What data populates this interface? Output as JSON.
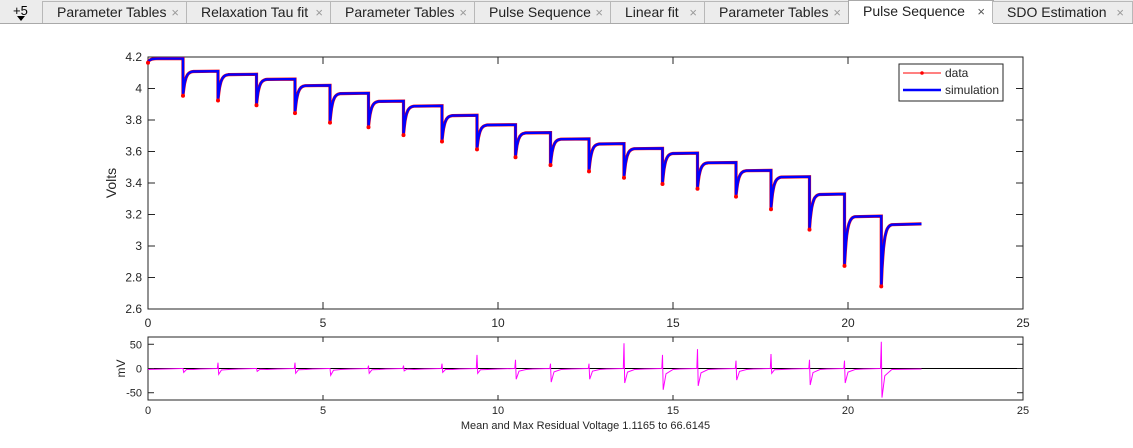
{
  "tabs": {
    "more_label": "+5",
    "items": [
      {
        "label": "Parameter Tables"
      },
      {
        "label": "Relaxation Tau fit"
      },
      {
        "label": "Parameter Tables"
      },
      {
        "label": "Pulse Sequence"
      },
      {
        "label": "Linear fit"
      },
      {
        "label": "Parameter Tables"
      },
      {
        "label": "Pulse Sequence",
        "active": true
      },
      {
        "label": "SDO Estimation"
      }
    ],
    "close_glyph": "×"
  },
  "chart_data": [
    {
      "type": "line",
      "ylabel": "Volts",
      "xlim": [
        0,
        25
      ],
      "ylim": [
        2.6,
        4.2
      ],
      "xticks": [
        "0",
        "5",
        "10",
        "15",
        "20",
        "25"
      ],
      "yticks": [
        "2.6",
        "2.8",
        "3",
        "3.2",
        "3.4",
        "3.6",
        "3.8",
        "4",
        "4.2"
      ],
      "legend": {
        "position": "top-right",
        "entries": [
          "data",
          "simulation"
        ]
      },
      "colors": {
        "data": "#ff0000",
        "simulation": "#0000ff"
      },
      "pulses": [
        {
          "t": 0.0,
          "rest": 4.19,
          "dip": 4.17
        },
        {
          "t": 1.0,
          "rest": 4.11,
          "dip": 3.96
        },
        {
          "t": 2.0,
          "rest": 4.09,
          "dip": 3.93
        },
        {
          "t": 3.1,
          "rest": 4.06,
          "dip": 3.9
        },
        {
          "t": 4.2,
          "rest": 4.02,
          "dip": 3.85
        },
        {
          "t": 5.2,
          "rest": 3.97,
          "dip": 3.79
        },
        {
          "t": 6.3,
          "rest": 3.92,
          "dip": 3.76
        },
        {
          "t": 7.3,
          "rest": 3.89,
          "dip": 3.71
        },
        {
          "t": 8.4,
          "rest": 3.83,
          "dip": 3.67
        },
        {
          "t": 9.4,
          "rest": 3.77,
          "dip": 3.62
        },
        {
          "t": 10.5,
          "rest": 3.72,
          "dip": 3.57
        },
        {
          "t": 11.5,
          "rest": 3.68,
          "dip": 3.52
        },
        {
          "t": 12.6,
          "rest": 3.65,
          "dip": 3.48
        },
        {
          "t": 13.6,
          "rest": 3.62,
          "dip": 3.44
        },
        {
          "t": 14.7,
          "rest": 3.59,
          "dip": 3.4
        },
        {
          "t": 15.7,
          "rest": 3.53,
          "dip": 3.37
        },
        {
          "t": 16.8,
          "rest": 3.48,
          "dip": 3.32
        },
        {
          "t": 17.8,
          "rest": 3.44,
          "dip": 3.24
        },
        {
          "t": 18.9,
          "rest": 3.33,
          "dip": 3.11
        },
        {
          "t": 19.9,
          "rest": 3.19,
          "dip": 2.88
        },
        {
          "t": 20.95,
          "rest": 3.14,
          "dip": 2.75,
          "end": 22.1
        }
      ]
    },
    {
      "type": "line",
      "ylabel": "mV",
      "xlabel": "Mean and Max Residual Voltage 1.1165 to 66.6145",
      "xlim": [
        0,
        25
      ],
      "ylim": [
        -65,
        65
      ],
      "xticks": [
        "0",
        "5",
        "10",
        "15",
        "20",
        "25"
      ],
      "yticks": [
        "-50",
        "0",
        "50"
      ],
      "color": "#ff00ff",
      "spikes": [
        {
          "t": 1.0,
          "up": 0,
          "down": -8
        },
        {
          "t": 2.0,
          "up": 12,
          "down": -12
        },
        {
          "t": 3.1,
          "up": 0,
          "down": -6
        },
        {
          "t": 4.2,
          "up": 12,
          "down": -10
        },
        {
          "t": 5.2,
          "up": 0,
          "down": -14
        },
        {
          "t": 6.3,
          "up": 6,
          "down": -10
        },
        {
          "t": 7.3,
          "up": 6,
          "down": -5
        },
        {
          "t": 8.4,
          "up": 10,
          "down": -8
        },
        {
          "t": 9.4,
          "up": 28,
          "down": -10
        },
        {
          "t": 10.5,
          "up": 18,
          "down": -22
        },
        {
          "t": 11.5,
          "up": 10,
          "down": -28
        },
        {
          "t": 12.6,
          "up": 10,
          "down": -22
        },
        {
          "t": 13.6,
          "up": 52,
          "down": -30
        },
        {
          "t": 14.7,
          "up": 28,
          "down": -44
        },
        {
          "t": 15.7,
          "up": 40,
          "down": -36
        },
        {
          "t": 16.8,
          "up": 16,
          "down": -24
        },
        {
          "t": 17.8,
          "up": 30,
          "down": -10
        },
        {
          "t": 18.9,
          "up": 18,
          "down": -34
        },
        {
          "t": 19.9,
          "up": 16,
          "down": -30
        },
        {
          "t": 20.95,
          "up": 55,
          "down": -60
        }
      ]
    }
  ]
}
